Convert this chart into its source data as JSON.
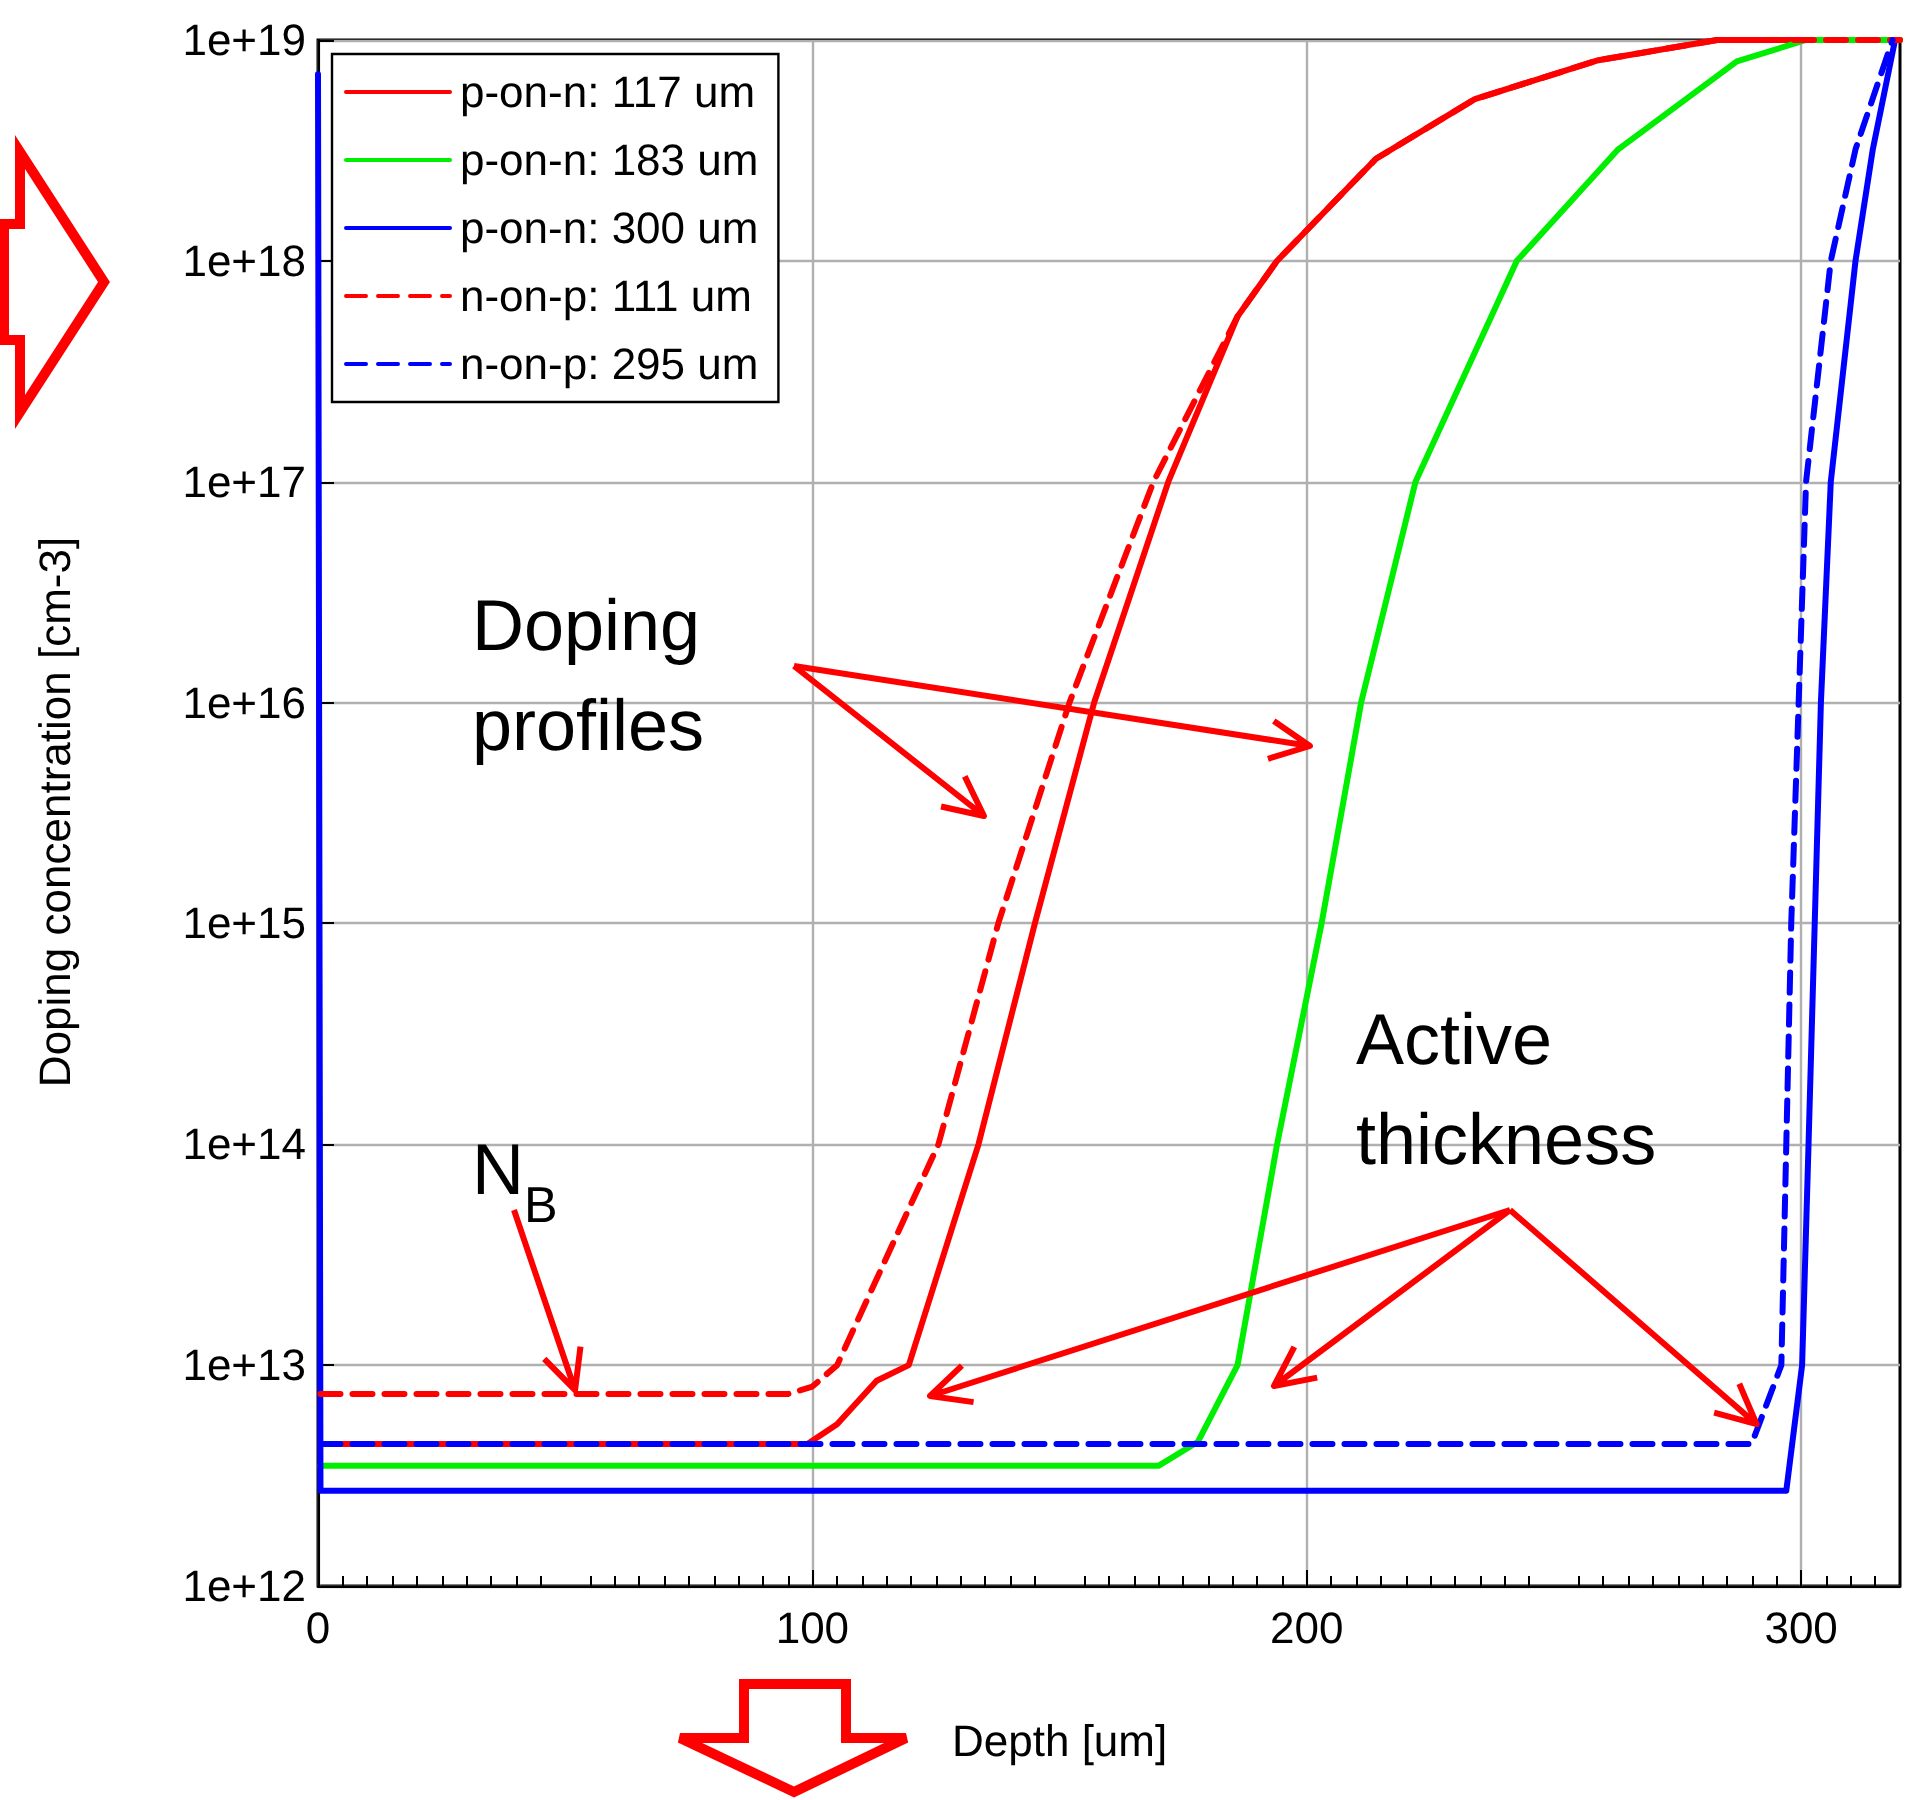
{
  "chart_data": {
    "type": "line",
    "xlabel": "Depth [um]",
    "ylabel": "Doping concentration [cm-3]",
    "log": "y",
    "grid": true,
    "legend": "top left",
    "marker": "none",
    "xlim": [
      0,
      320
    ],
    "xticks": [
      0,
      100,
      200,
      300
    ],
    "ylim": [
      1000000000000.0,
      1e+19
    ],
    "yticks": [
      {
        "value": 1000000000000.0,
        "label": "1e+12"
      },
      {
        "value": 10000000000000.0,
        "label": "1e+13"
      },
      {
        "value": 100000000000000.0,
        "label": "1e+14"
      },
      {
        "value": 1000000000000000.0,
        "label": "1e+15"
      },
      {
        "value": 1e+16,
        "label": "1e+16"
      },
      {
        "value": 1e+17,
        "label": "1e+17"
      },
      {
        "value": 1e+18,
        "label": "1e+18"
      },
      {
        "value": 1e+19,
        "label": "1e+19"
      }
    ],
    "annotations": [
      "Doping profiles",
      {
        "text": "Active thickness",
        "x": 291,
        "y": 5400000000000.0
      },
      {
        "text": "N$_{B}$",
        "x": 52,
        "y": 7700000000000.0
      }
    ],
    "series": [
      {
        "name": "p-on-n: 117 um",
        "color": "#ff0000",
        "line_style": "solid",
        "x": [
          0.5,
          99,
          105,
          113,
          119.5,
          133.6,
          145,
          157,
          172,
          186,
          194,
          214,
          234,
          259,
          283,
          320
        ],
        "values": [
          4400000000000.0,
          4400000000000.0,
          5400000000000.0,
          8500000000000.0,
          10000000000000.0,
          100000000000000.0,
          1000000000000000.0,
          1e+16,
          1e+17,
          5.6e+17,
          1e+18,
          2.9e+18,
          5.4e+18,
          8.1e+18,
          1e+19,
          1e+19
        ]
      },
      {
        "name": "p-on-n: 183 um",
        "color": "#00ee00",
        "line_style": "solid",
        "x": [
          0.5,
          170,
          178,
          186,
          194,
          203,
          211,
          222,
          242.5,
          263,
          287,
          301,
          320
        ],
        "values": [
          3500000000000.0,
          3500000000000.0,
          4500000000000.0,
          10000000000000.0,
          100000000000000.0,
          1000000000000000.0,
          1e+16,
          1e+17,
          1e+18,
          3.2e+18,
          8e+18,
          1e+19,
          1e+19
        ]
      },
      {
        "name": "p-on-n: 300 um",
        "color": "#0000ff",
        "line_style": "solid",
        "x": [
          0,
          0.5,
          297,
          300.2,
          301.5,
          304,
          306,
          311,
          314.5,
          319
        ],
        "values": [
          7e+18,
          2700000000000.0,
          2700000000000.0,
          10000000000000.0,
          100000000000000.0,
          1e+16,
          1e+17,
          1e+18,
          3.2e+18,
          1e+19
        ]
      },
      {
        "name": "n-on-p: 111 um",
        "color": "#ff0000",
        "line_style": "dashed",
        "x": [
          0.5,
          95,
          100,
          105,
          125.5,
          137.6,
          152,
          169,
          186,
          194,
          214,
          234,
          259,
          283,
          320
        ],
        "values": [
          7400000000000.0,
          7400000000000.0,
          8000000000000.0,
          10000000000000.0,
          100000000000000.0,
          1000000000000000.0,
          1e+16,
          1e+17,
          5.6e+17,
          1e+18,
          2.9e+18,
          5.4e+18,
          8.1e+18,
          1e+19,
          1e+19
        ]
      },
      {
        "name": "n-on-p: 295 um",
        "color": "#0000ff",
        "line_style": "dashed",
        "x": [
          0.5,
          290,
          296,
          298,
          301,
          306,
          311,
          318.5
        ],
        "values": [
          4400000000000.0,
          4400000000000.0,
          10000000000000.0,
          1000000000000000.0,
          1e+17,
          1e+18,
          3.2e+18,
          1e+19
        ]
      }
    ]
  }
}
